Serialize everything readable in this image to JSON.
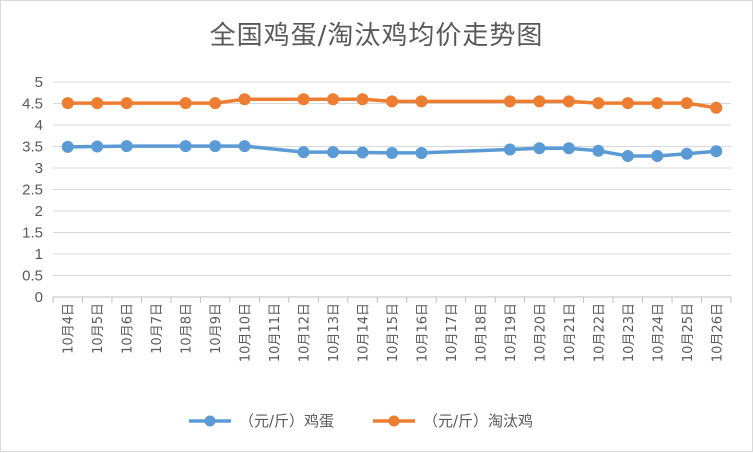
{
  "chart_data": {
    "type": "line",
    "title": "全国鸡蛋/淘汰鸡均价走势图",
    "categories": [
      "10月4日",
      "10月5日",
      "10月6日",
      "10月7日",
      "10月8日",
      "10月9日",
      "10月10日",
      "10月11日",
      "10月12日",
      "10月13日",
      "10月14日",
      "10月15日",
      "10月16日",
      "10月17日",
      "10月18日",
      "10月19日",
      "10月20日",
      "10月21日",
      "10月22日",
      "10月23日",
      "10月24日",
      "10月25日",
      "10月26日"
    ],
    "ylim": [
      0,
      5
    ],
    "yticks": [
      "0",
      "0.5",
      "1",
      "1.5",
      "2",
      "2.5",
      "3",
      "3.5",
      "4",
      "4.5",
      "5"
    ],
    "grid": true,
    "legend_position": "bottom",
    "series": [
      {
        "name": "（元/斤）鸡蛋",
        "color": "#5b9bd5",
        "values": [
          3.49,
          3.5,
          3.51,
          null,
          3.51,
          3.51,
          3.51,
          null,
          3.37,
          3.37,
          3.36,
          3.35,
          3.35,
          null,
          null,
          3.43,
          3.46,
          3.46,
          3.4,
          3.28,
          3.28,
          3.33,
          3.39
        ]
      },
      {
        "name": "（元/斤）淘汰鸡",
        "color": "#ed7d31",
        "values": [
          4.51,
          4.51,
          4.51,
          null,
          4.51,
          4.51,
          4.6,
          null,
          4.6,
          4.6,
          4.6,
          4.55,
          4.55,
          null,
          null,
          4.55,
          4.55,
          4.55,
          4.51,
          4.51,
          4.51,
          4.51,
          4.4
        ]
      }
    ]
  }
}
